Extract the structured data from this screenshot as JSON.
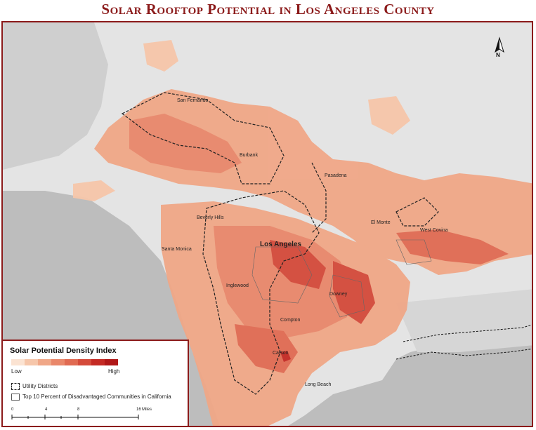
{
  "title": "Solar Rooftop Potential in Los Angeles County",
  "north_arrow": {
    "label": "N"
  },
  "places": {
    "san_fernando": "San Fernando",
    "burbank": "Burbank",
    "pasadena": "Pasadena",
    "beverly_hills": "Beverly Hills",
    "el_monte": "El Monte",
    "west_covina": "West Covina",
    "santa_monica": "Santa Monica",
    "los_angeles": "Los Angeles",
    "inglewood": "Inglewood",
    "downey": "Downey",
    "compton": "Compton",
    "carson": "Carson",
    "long_beach": "Long Beach"
  },
  "legend": {
    "title": "Solar Potential Density Index",
    "ramp_colors": [
      "#fbe3d2",
      "#f6c6aa",
      "#f0a787",
      "#e9876a",
      "#e06a52",
      "#d44a3a",
      "#c42a24",
      "#b01818"
    ],
    "low_label": "Low",
    "high_label": "High",
    "utility_label": "Utility Districts",
    "disadvantaged_label": "Top 10 Percent of Disadvantaged Communities in California",
    "scale": {
      "ticks": [
        "0",
        "4",
        "8",
        "16"
      ],
      "unit": "Miles"
    }
  },
  "colors": {
    "title": "#8b1a1a",
    "water": "#bdbdbd",
    "land": "#e4e4e4",
    "solar_light": "#f0a787",
    "solar_dark": "#c42a24"
  }
}
